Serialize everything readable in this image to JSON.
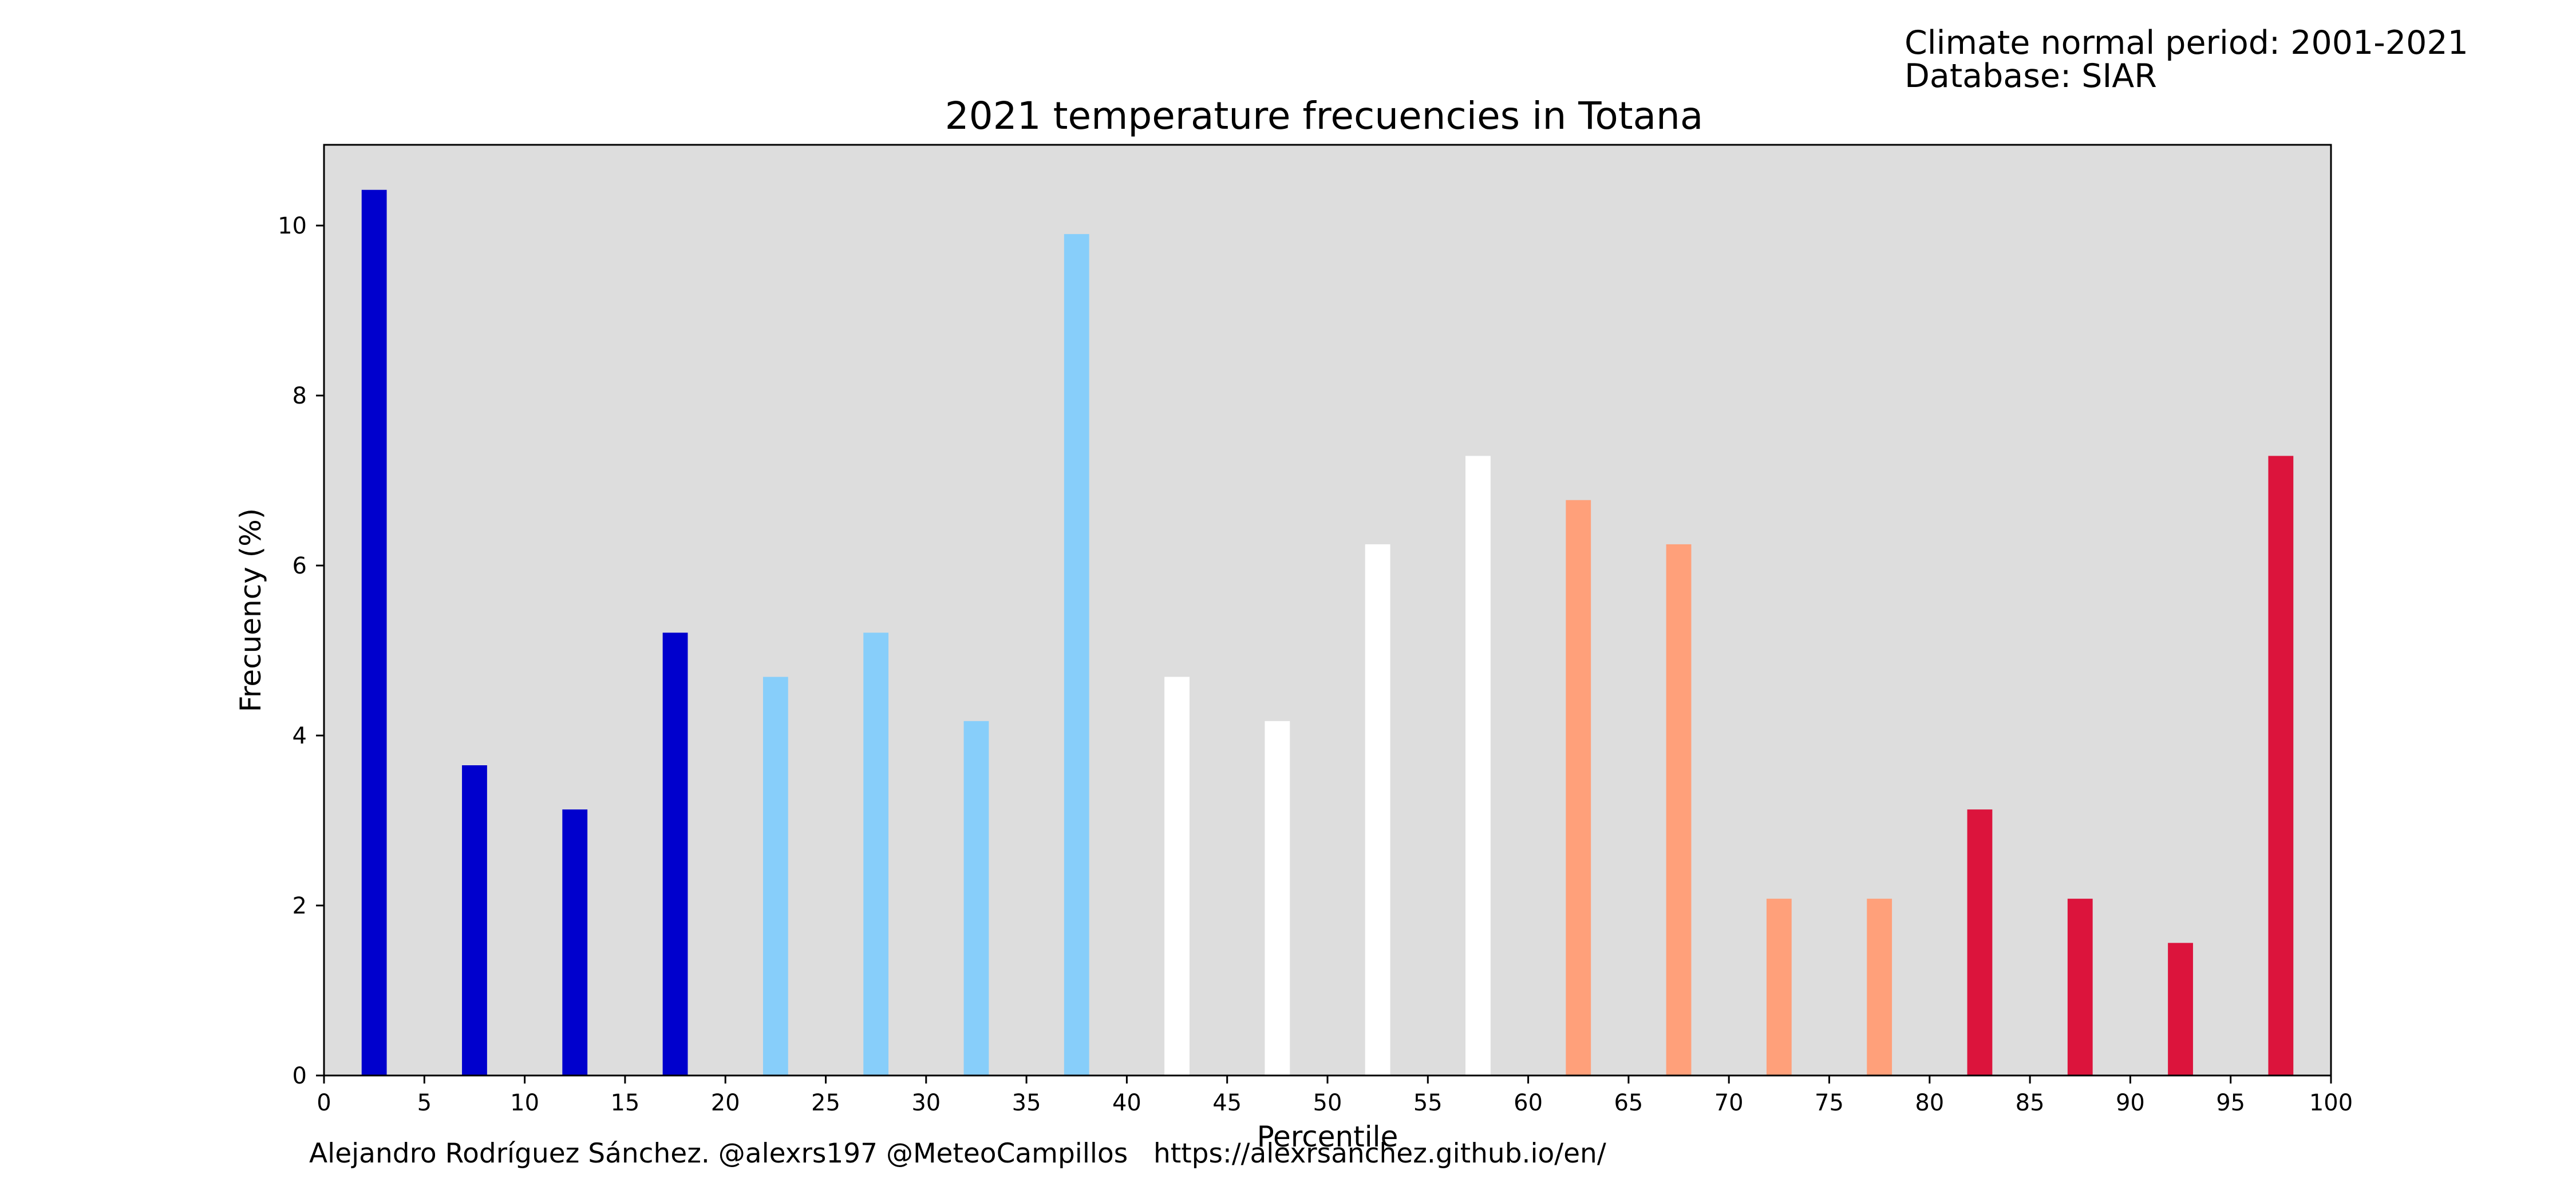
{
  "header": {
    "climate_period": "Climate normal period: 2001-2021",
    "database": "Database: SIAR"
  },
  "footer": {
    "credit": "Alejandro Rodríguez Sánchez. @alexrs197 @MeteoCampillos   https://alexrsanchez.github.io/en/"
  },
  "chart_data": {
    "type": "bar",
    "title": "2021 temperature frecuencies in Totana",
    "xlabel": "Percentile",
    "ylabel": "Frecuency (%)",
    "xlim": [
      0,
      100
    ],
    "ylim": [
      0,
      10.95
    ],
    "x_ticks": [
      0,
      5,
      10,
      15,
      20,
      25,
      30,
      35,
      40,
      45,
      50,
      55,
      60,
      65,
      70,
      75,
      80,
      85,
      90,
      95,
      100
    ],
    "y_ticks": [
      0,
      2,
      4,
      6,
      8,
      10
    ],
    "grid": false,
    "background_color": "#dddddd",
    "bar_width": 1.25,
    "x": [
      2.5,
      7.5,
      12.5,
      17.5,
      22.5,
      27.5,
      32.5,
      37.5,
      42.5,
      47.5,
      52.5,
      57.5,
      62.5,
      67.5,
      72.5,
      77.5,
      82.5,
      87.5,
      92.5,
      97.5
    ],
    "values": [
      10.42,
      3.65,
      3.13,
      5.21,
      4.69,
      5.21,
      4.17,
      9.9,
      4.69,
      4.17,
      6.25,
      7.29,
      6.77,
      6.25,
      2.08,
      2.08,
      3.13,
      2.08,
      1.56,
      7.29
    ],
    "colors": [
      "#0000cd",
      "#0000cd",
      "#0000cd",
      "#0000cd",
      "#87cefa",
      "#87cefa",
      "#87cefa",
      "#87cefa",
      "#ffffff",
      "#ffffff",
      "#ffffff",
      "#ffffff",
      "#ffa07a",
      "#ffa07a",
      "#ffa07a",
      "#ffa07a",
      "#dc143c",
      "#dc143c",
      "#dc143c",
      "#dc143c"
    ]
  }
}
